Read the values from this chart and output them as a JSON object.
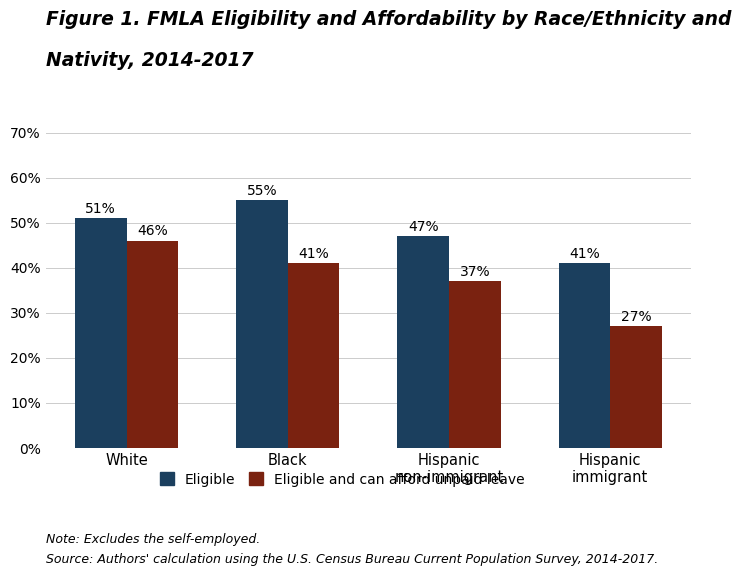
{
  "title_line1": "Figure 1. FMLA Eligibility and Affordability by Race/Ethnicity and",
  "title_line2": "Nativity, 2014-2017",
  "categories": [
    "White",
    "Black",
    "Hispanic\nnon-immigrant",
    "Hispanic\nimmigrant"
  ],
  "eligible": [
    51,
    55,
    47,
    41
  ],
  "affordable": [
    46,
    41,
    37,
    27
  ],
  "eligible_color": "#1b3f5e",
  "affordable_color": "#7a2210",
  "ylim": [
    0,
    70
  ],
  "yticks": [
    0,
    10,
    20,
    30,
    40,
    50,
    60,
    70
  ],
  "ytick_labels": [
    "0%",
    "10%",
    "20%",
    "30%",
    "40%",
    "50%",
    "60%",
    "70%"
  ],
  "bar_width": 0.32,
  "legend_label_eligible": "Eligible",
  "legend_label_affordable": "Eligible and can afford unpaid leave",
  "note": "Note: Excludes the self-employed.",
  "source": "Source: Authors' calculation using the U.S. Census Bureau Current Population Survey, 2014-2017.",
  "title_fontsize": 13.5,
  "label_fontsize": 10.5,
  "tick_fontsize": 10,
  "annotation_fontsize": 10,
  "note_fontsize": 9,
  "background_color": "#ffffff"
}
